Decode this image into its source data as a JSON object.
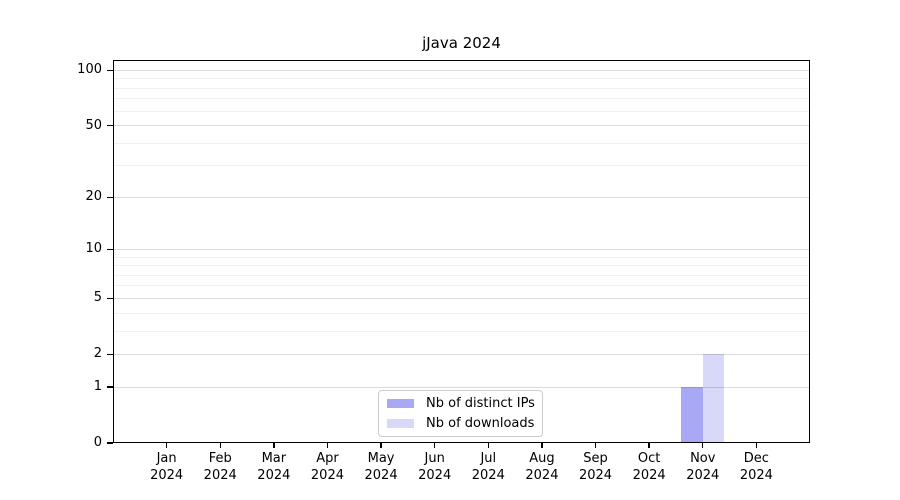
{
  "title": "jJava 2024",
  "colors": {
    "distinct_ips_bar": "#a8a8f5",
    "downloads_bar": "#d8d8f8",
    "axis": "#000000",
    "grid_major": "#dddddd",
    "grid_minor": "#ececec",
    "legend_border": "#cccccc",
    "background": "#ffffff"
  },
  "chart_data": {
    "type": "bar",
    "title": "jJava 2024",
    "categories": [
      "Jan 2024",
      "Feb 2024",
      "Mar 2024",
      "Apr 2024",
      "May 2024",
      "Jun 2024",
      "Jul 2024",
      "Aug 2024",
      "Sep 2024",
      "Oct 2024",
      "Nov 2024",
      "Dec 2024"
    ],
    "series": [
      {
        "name": "Nb of distinct IPs",
        "color": "#a8a8f5",
        "values": [
          0,
          0,
          0,
          0,
          0,
          0,
          0,
          0,
          0,
          0,
          1,
          0
        ]
      },
      {
        "name": "Nb of downloads",
        "color": "#d8d8f8",
        "values": [
          0,
          0,
          0,
          0,
          0,
          0,
          0,
          0,
          0,
          0,
          2,
          0
        ]
      }
    ],
    "xlabel": "",
    "ylabel": "",
    "y_scale": "log1p",
    "ylim": [
      0,
      100
    ],
    "y_major_ticks": [
      0,
      1,
      2,
      5,
      10,
      20,
      50,
      100
    ],
    "y_minor_ticks": [
      3,
      4,
      6,
      7,
      8,
      9,
      30,
      40,
      60,
      70,
      80,
      90
    ],
    "grid": true,
    "legend_position": "inside-bottom-center"
  }
}
